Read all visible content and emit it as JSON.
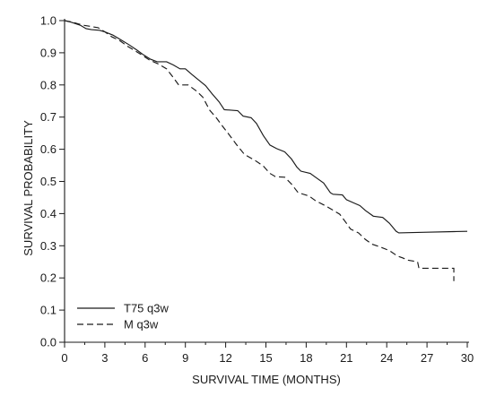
{
  "chart_data": {
    "type": "line",
    "xlabel": "SURVIVAL TIME (MONTHS)",
    "ylabel": "SURVIVAL PROBABILITY",
    "xlim": [
      0,
      30
    ],
    "ylim": [
      0,
      1.0
    ],
    "x_ticks": [
      "0",
      "3",
      "6",
      "9",
      "12",
      "15",
      "18",
      "21",
      "24",
      "27",
      "30"
    ],
    "y_ticks": [
      "0.0",
      "0.1",
      "0.2",
      "0.3",
      "0.4",
      "0.5",
      "0.6",
      "0.7",
      "0.8",
      "0.9",
      "1.0"
    ],
    "grid": false,
    "legend_position": "bottom-left",
    "series": [
      {
        "name": "T75 q3w",
        "line_style": "solid",
        "color": "#1a1a1a",
        "points": [
          [
            0,
            1.0
          ],
          [
            0.5,
            0.995
          ],
          [
            1.2,
            0.985
          ],
          [
            1.6,
            0.975
          ],
          [
            2.0,
            0.972
          ],
          [
            2.6,
            0.97
          ],
          [
            3.0,
            0.965
          ],
          [
            3.6,
            0.955
          ],
          [
            4.2,
            0.94
          ],
          [
            4.8,
            0.925
          ],
          [
            5.4,
            0.908
          ],
          [
            5.9,
            0.893
          ],
          [
            6.4,
            0.88
          ],
          [
            6.9,
            0.872
          ],
          [
            7.6,
            0.872
          ],
          [
            8.1,
            0.862
          ],
          [
            8.6,
            0.85
          ],
          [
            9.0,
            0.85
          ],
          [
            9.5,
            0.832
          ],
          [
            10.0,
            0.815
          ],
          [
            10.5,
            0.798
          ],
          [
            11.0,
            0.772
          ],
          [
            11.5,
            0.748
          ],
          [
            11.9,
            0.723
          ],
          [
            12.9,
            0.72
          ],
          [
            13.3,
            0.703
          ],
          [
            13.9,
            0.698
          ],
          [
            14.3,
            0.68
          ],
          [
            14.8,
            0.643
          ],
          [
            15.3,
            0.613
          ],
          [
            15.8,
            0.602
          ],
          [
            16.4,
            0.592
          ],
          [
            16.9,
            0.57
          ],
          [
            17.3,
            0.545
          ],
          [
            17.6,
            0.532
          ],
          [
            18.3,
            0.525
          ],
          [
            18.8,
            0.51
          ],
          [
            19.3,
            0.495
          ],
          [
            19.8,
            0.465
          ],
          [
            20.0,
            0.46
          ],
          [
            20.7,
            0.458
          ],
          [
            21.0,
            0.443
          ],
          [
            21.6,
            0.432
          ],
          [
            22.0,
            0.425
          ],
          [
            22.4,
            0.41
          ],
          [
            23.0,
            0.392
          ],
          [
            23.7,
            0.388
          ],
          [
            24.2,
            0.37
          ],
          [
            24.7,
            0.345
          ],
          [
            24.9,
            0.34
          ],
          [
            27.0,
            0.342
          ],
          [
            29.0,
            0.344
          ],
          [
            30.0,
            0.345
          ]
        ]
      },
      {
        "name": "M q3w",
        "line_style": "dashed",
        "color": "#1a1a1a",
        "points": [
          [
            0,
            1.0
          ],
          [
            0.6,
            0.995
          ],
          [
            1.0,
            0.99
          ],
          [
            1.5,
            0.985
          ],
          [
            2.5,
            0.978
          ],
          [
            3.0,
            0.965
          ],
          [
            3.5,
            0.95
          ],
          [
            4.1,
            0.938
          ],
          [
            4.7,
            0.92
          ],
          [
            5.3,
            0.905
          ],
          [
            5.8,
            0.892
          ],
          [
            6.3,
            0.878
          ],
          [
            7.0,
            0.865
          ],
          [
            7.6,
            0.85
          ],
          [
            8.1,
            0.823
          ],
          [
            8.5,
            0.8
          ],
          [
            9.2,
            0.8
          ],
          [
            9.8,
            0.782
          ],
          [
            10.3,
            0.762
          ],
          [
            10.8,
            0.722
          ],
          [
            11.3,
            0.698
          ],
          [
            11.8,
            0.67
          ],
          [
            12.3,
            0.643
          ],
          [
            12.8,
            0.615
          ],
          [
            13.4,
            0.584
          ],
          [
            14.2,
            0.565
          ],
          [
            14.8,
            0.548
          ],
          [
            15.3,
            0.525
          ],
          [
            15.7,
            0.515
          ],
          [
            16.4,
            0.513
          ],
          [
            16.9,
            0.492
          ],
          [
            17.4,
            0.465
          ],
          [
            18.2,
            0.455
          ],
          [
            18.7,
            0.44
          ],
          [
            19.4,
            0.425
          ],
          [
            19.9,
            0.413
          ],
          [
            20.5,
            0.398
          ],
          [
            21.0,
            0.37
          ],
          [
            21.3,
            0.352
          ],
          [
            21.9,
            0.34
          ],
          [
            22.4,
            0.32
          ],
          [
            22.9,
            0.305
          ],
          [
            23.4,
            0.298
          ],
          [
            24.2,
            0.285
          ],
          [
            24.8,
            0.268
          ],
          [
            25.2,
            0.262
          ],
          [
            25.6,
            0.255
          ],
          [
            26.3,
            0.25
          ],
          [
            26.4,
            0.23
          ],
          [
            29.0,
            0.23
          ],
          [
            29.0,
            0.19
          ]
        ]
      }
    ]
  }
}
